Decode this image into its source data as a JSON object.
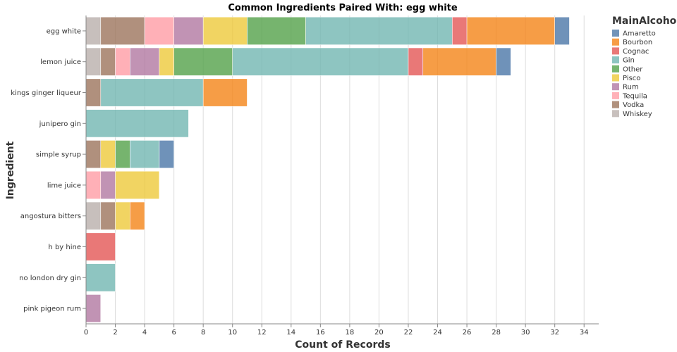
{
  "chart_data": {
    "type": "bar",
    "orientation": "horizontal",
    "stacked": true,
    "title": "Common Ingredients Paired With: egg white",
    "xlabel": "Count of Records",
    "ylabel": "Ingredient",
    "xlim": [
      0,
      35
    ],
    "xticks": [
      0,
      2,
      4,
      6,
      8,
      10,
      12,
      14,
      16,
      18,
      20,
      22,
      24,
      26,
      28,
      30,
      32,
      34
    ],
    "grid": true,
    "legend_title": "MainAlcohol",
    "legend_position": "right",
    "stack_order": [
      "Whiskey",
      "Vodka",
      "Tequila",
      "Rum",
      "Pisco",
      "Other",
      "Gin",
      "Cognac",
      "Bourbon",
      "Amaretto"
    ],
    "legend": [
      {
        "name": "Amaretto",
        "color": "#4c78a8"
      },
      {
        "name": "Bourbon",
        "color": "#f58518"
      },
      {
        "name": "Cognac",
        "color": "#e45756"
      },
      {
        "name": "Gin",
        "color": "#72b7b2"
      },
      {
        "name": "Other",
        "color": "#54a24b"
      },
      {
        "name": "Pisco",
        "color": "#eeca3b"
      },
      {
        "name": "Rum",
        "color": "#b279a2"
      },
      {
        "name": "Tequila",
        "color": "#ff9da6"
      },
      {
        "name": "Vodka",
        "color": "#9d755d"
      },
      {
        "name": "Whiskey",
        "color": "#bab0ac"
      }
    ],
    "categories": [
      "egg white",
      "lemon juice",
      "kings ginger liqueur",
      "junipero gin",
      "simple syrup",
      "lime juice",
      "angostura bitters",
      "h by hine",
      "no london dry gin",
      "pink pigeon rum"
    ],
    "series": [
      {
        "name": "Whiskey",
        "values": [
          1,
          1,
          0,
          0,
          0,
          0,
          1,
          0,
          0,
          0
        ]
      },
      {
        "name": "Vodka",
        "values": [
          3,
          1,
          1,
          0,
          1,
          0,
          1,
          0,
          0,
          0
        ]
      },
      {
        "name": "Tequila",
        "values": [
          2,
          1,
          0,
          0,
          0,
          1,
          0,
          0,
          0,
          0
        ]
      },
      {
        "name": "Rum",
        "values": [
          2,
          2,
          0,
          0,
          0,
          1,
          0,
          0,
          0,
          1
        ]
      },
      {
        "name": "Pisco",
        "values": [
          3,
          1,
          0,
          0,
          1,
          3,
          1,
          0,
          0,
          0
        ]
      },
      {
        "name": "Other",
        "values": [
          4,
          4,
          0,
          0,
          1,
          0,
          0,
          0,
          0,
          0
        ]
      },
      {
        "name": "Gin",
        "values": [
          10,
          12,
          7,
          7,
          2,
          0,
          0,
          0,
          2,
          0
        ]
      },
      {
        "name": "Cognac",
        "values": [
          1,
          1,
          0,
          0,
          0,
          0,
          0,
          2,
          0,
          0
        ]
      },
      {
        "name": "Bourbon",
        "values": [
          6,
          5,
          3,
          0,
          0,
          0,
          1,
          0,
          0,
          0
        ]
      },
      {
        "name": "Amaretto",
        "values": [
          1,
          1,
          0,
          0,
          1,
          0,
          0,
          0,
          0,
          0
        ]
      }
    ]
  }
}
